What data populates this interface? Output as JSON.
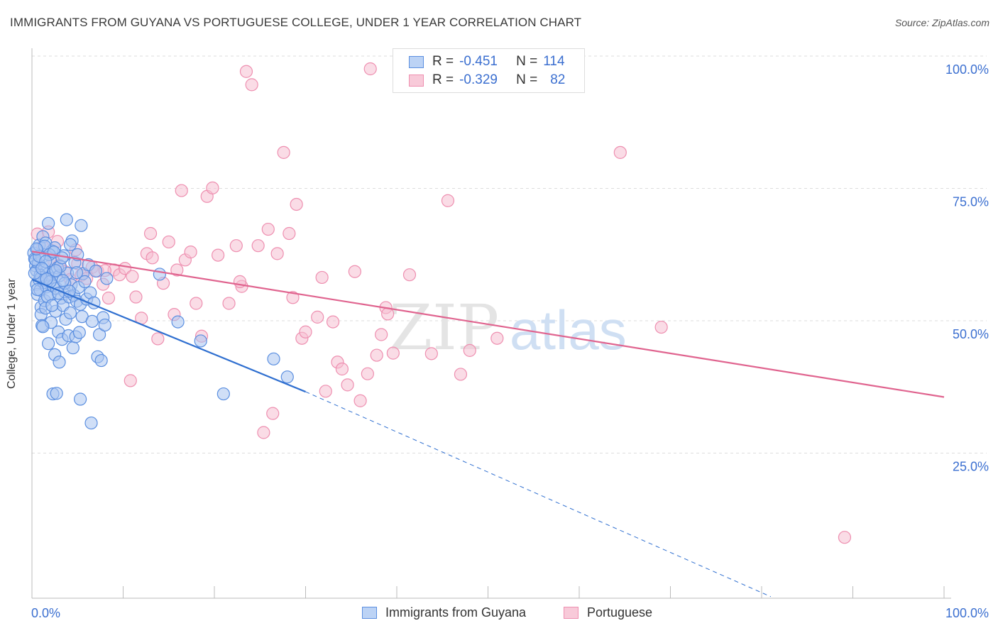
{
  "header": {
    "title": "IMMIGRANTS FROM GUYANA VS PORTUGUESE COLLEGE, UNDER 1 YEAR CORRELATION CHART",
    "source": "Source: ZipAtlas.com"
  },
  "watermark": {
    "zip": "ZIP",
    "atlas": "atlas"
  },
  "legend": {
    "rows": [
      {
        "r_label": "R =",
        "r_value": "-0.451",
        "n_label": "N =",
        "n_value": "114",
        "color": "#5b8fe0"
      },
      {
        "r_label": "R =",
        "r_value": "-0.329",
        "n_label": "N =",
        "n_value": "82",
        "color": "#ee8fb0"
      }
    ]
  },
  "bottom_legend": [
    "Immigrants from Guyana",
    "Portuguese"
  ],
  "colors": {
    "blue_fill": "#a9c5f0",
    "blue_stroke": "#5b8fe0",
    "blue_line": "#2f6fd0",
    "pink_fill": "#f6bfd1",
    "pink_stroke": "#ee8fb0",
    "pink_line": "#e0648f",
    "axis_label": "#3b6fd0",
    "grid": "#dddddd"
  },
  "chart_data": {
    "type": "scatter",
    "title": "IMMIGRANTS FROM GUYANA VS PORTUGUESE COLLEGE, UNDER 1 YEAR CORRELATION CHART",
    "xlabel": "",
    "ylabel": "College, Under 1 year",
    "xlim": [
      0,
      100
    ],
    "ylim": [
      0,
      100
    ],
    "x_tick_labels": [
      "0.0%",
      "100.0%"
    ],
    "y_tick_labels": [
      "100.0%",
      "75.0%",
      "50.0%",
      "25.0%"
    ],
    "y_ticks": [
      100,
      75,
      50,
      25
    ],
    "grid": true,
    "legend_position": "top-center",
    "series": [
      {
        "name": "Immigrants from Guyana",
        "r": -0.451,
        "n": 114,
        "trend": {
          "x": [
            0,
            30
          ],
          "y": [
            60.2,
            39.0
          ]
        },
        "trend_extension": {
          "x": [
            30,
            81
          ],
          "y": [
            39.0,
            0.3
          ]
        },
        "points": [
          [
            0.2,
            65.2
          ],
          [
            0.3,
            64.1
          ],
          [
            0.4,
            62.8
          ],
          [
            0.5,
            61.9
          ],
          [
            0.5,
            59.3
          ],
          [
            0.6,
            57.4
          ],
          [
            0.6,
            65.8
          ],
          [
            0.7,
            63.2
          ],
          [
            0.8,
            66.7
          ],
          [
            0.8,
            60.1
          ],
          [
            0.9,
            58.2
          ],
          [
            1.0,
            55.0
          ],
          [
            1.0,
            53.6
          ],
          [
            1.1,
            51.5
          ],
          [
            1.1,
            64.4
          ],
          [
            1.2,
            68.3
          ],
          [
            1.3,
            62.0
          ],
          [
            1.3,
            59.6
          ],
          [
            1.4,
            56.2
          ],
          [
            1.5,
            54.8
          ],
          [
            1.5,
            67.1
          ],
          [
            1.6,
            58.8
          ],
          [
            1.7,
            61.2
          ],
          [
            1.8,
            70.8
          ],
          [
            1.8,
            48.1
          ],
          [
            1.9,
            60.5
          ],
          [
            2.0,
            57.3
          ],
          [
            2.0,
            63.8
          ],
          [
            2.1,
            52.1
          ],
          [
            2.2,
            65.6
          ],
          [
            2.3,
            59.0
          ],
          [
            2.4,
            61.6
          ],
          [
            2.5,
            46.0
          ],
          [
            2.5,
            66.2
          ],
          [
            2.6,
            54.2
          ],
          [
            2.7,
            58.5
          ],
          [
            2.8,
            62.4
          ],
          [
            2.9,
            50.3
          ],
          [
            3.0,
            44.6
          ],
          [
            3.0,
            60.9
          ],
          [
            3.2,
            56.7
          ],
          [
            3.3,
            48.9
          ],
          [
            3.4,
            55.3
          ],
          [
            3.5,
            64.7
          ],
          [
            3.6,
            57.9
          ],
          [
            3.7,
            52.7
          ],
          [
            3.8,
            71.5
          ],
          [
            3.9,
            61.4
          ],
          [
            4.0,
            49.6
          ],
          [
            4.1,
            56.9
          ],
          [
            4.2,
            53.9
          ],
          [
            4.3,
            59.2
          ],
          [
            4.4,
            67.5
          ],
          [
            4.5,
            47.3
          ],
          [
            4.6,
            57.2
          ],
          [
            4.7,
            63.4
          ],
          [
            4.8,
            49.4
          ],
          [
            4.9,
            56.1
          ],
          [
            5.0,
            64.9
          ],
          [
            5.1,
            58.7
          ],
          [
            5.2,
            50.2
          ],
          [
            5.3,
            55.5
          ],
          [
            5.4,
            70.4
          ],
          [
            5.5,
            53.2
          ],
          [
            5.6,
            61.3
          ],
          [
            5.8,
            59.8
          ],
          [
            6.0,
            56.5
          ],
          [
            6.2,
            63.0
          ],
          [
            6.4,
            57.7
          ],
          [
            6.6,
            52.3
          ],
          [
            6.8,
            55.8
          ],
          [
            7.0,
            61.8
          ],
          [
            7.2,
            45.6
          ],
          [
            7.4,
            49.8
          ],
          [
            7.6,
            44.9
          ],
          [
            7.8,
            53.0
          ],
          [
            8.0,
            51.6
          ],
          [
            8.2,
            60.4
          ],
          [
            1.2,
            51.3
          ],
          [
            2.3,
            38.6
          ],
          [
            2.7,
            38.7
          ],
          [
            5.3,
            37.6
          ],
          [
            6.5,
            33.1
          ],
          [
            14.0,
            61.2
          ],
          [
            16.0,
            52.2
          ],
          [
            18.5,
            48.6
          ],
          [
            21.0,
            38.6
          ],
          [
            26.5,
            45.2
          ],
          [
            28.0,
            41.8
          ],
          [
            0.4,
            63.9
          ],
          [
            0.9,
            61.0
          ],
          [
            1.4,
            66.5
          ],
          [
            1.9,
            64.9
          ],
          [
            2.4,
            65.4
          ],
          [
            3.1,
            62.7
          ],
          [
            3.6,
            59.5
          ],
          [
            4.2,
            66.8
          ],
          [
            4.9,
            61.5
          ],
          [
            0.6,
            58.3
          ],
          [
            1.0,
            60.6
          ],
          [
            1.7,
            57.0
          ],
          [
            2.2,
            55.3
          ],
          [
            2.9,
            57.6
          ],
          [
            3.4,
            60.0
          ],
          [
            0.3,
            61.4
          ],
          [
            0.8,
            64.6
          ],
          [
            1.5,
            63.6
          ],
          [
            2.0,
            59.8
          ],
          [
            2.6,
            61.9
          ],
          [
            3.3,
            64.3
          ],
          [
            4.1,
            58.0
          ],
          [
            0.5,
            66.0
          ],
          [
            1.1,
            62.3
          ],
          [
            1.6,
            60.3
          ]
        ]
      },
      {
        "name": "Portuguese",
        "r": -0.329,
        "n": 82,
        "trend": {
          "x": [
            0,
            100
          ],
          "y": [
            65.5,
            38.0
          ]
        },
        "points": [
          [
            0.6,
            68.8
          ],
          [
            1.2,
            66.4
          ],
          [
            1.8,
            69.2
          ],
          [
            2.4,
            63.7
          ],
          [
            3.0,
            62.9
          ],
          [
            3.6,
            61.7
          ],
          [
            4.2,
            60.2
          ],
          [
            4.8,
            65.8
          ],
          [
            5.4,
            61.0
          ],
          [
            6.0,
            60.4
          ],
          [
            6.6,
            62.5
          ],
          [
            7.2,
            61.8
          ],
          [
            7.8,
            59.3
          ],
          [
            8.4,
            56.7
          ],
          [
            9.0,
            62.0
          ],
          [
            9.6,
            61.1
          ],
          [
            10.2,
            62.3
          ],
          [
            10.8,
            41.1
          ],
          [
            11.4,
            56.9
          ],
          [
            12.0,
            52.9
          ],
          [
            12.6,
            65.1
          ],
          [
            13.2,
            64.3
          ],
          [
            13.8,
            49.0
          ],
          [
            14.4,
            59.5
          ],
          [
            15.0,
            67.3
          ],
          [
            15.6,
            53.6
          ],
          [
            16.4,
            77.0
          ],
          [
            16.8,
            63.9
          ],
          [
            17.4,
            65.4
          ],
          [
            18.0,
            55.7
          ],
          [
            18.6,
            49.5
          ],
          [
            19.2,
            75.9
          ],
          [
            19.8,
            77.5
          ],
          [
            20.4,
            64.8
          ],
          [
            21.6,
            55.7
          ],
          [
            22.4,
            66.6
          ],
          [
            23.0,
            58.9
          ],
          [
            23.5,
            99.5
          ],
          [
            24.1,
            97.0
          ],
          [
            24.8,
            66.6
          ],
          [
            25.4,
            31.3
          ],
          [
            25.9,
            69.7
          ],
          [
            26.4,
            34.9
          ],
          [
            26.9,
            65.1
          ],
          [
            27.6,
            84.2
          ],
          [
            28.2,
            68.9
          ],
          [
            29.0,
            74.4
          ],
          [
            28.6,
            56.8
          ],
          [
            29.6,
            49.1
          ],
          [
            30.0,
            50.3
          ],
          [
            31.3,
            53.1
          ],
          [
            31.8,
            60.6
          ],
          [
            32.2,
            39.1
          ],
          [
            33.0,
            52.2
          ],
          [
            33.5,
            44.6
          ],
          [
            34.0,
            43.3
          ],
          [
            34.6,
            40.3
          ],
          [
            35.4,
            61.7
          ],
          [
            36.0,
            37.3
          ],
          [
            36.8,
            42.4
          ],
          [
            37.8,
            45.9
          ],
          [
            38.3,
            49.8
          ],
          [
            38.8,
            54.9
          ],
          [
            39.0,
            53.7
          ],
          [
            39.6,
            46.3
          ],
          [
            37.1,
            100.0
          ],
          [
            41.4,
            61.1
          ],
          [
            43.8,
            46.2
          ],
          [
            45.6,
            75.1
          ],
          [
            47.0,
            42.3
          ],
          [
            48.0,
            46.8
          ],
          [
            51.0,
            49.1
          ],
          [
            64.5,
            84.2
          ],
          [
            69.0,
            51.2
          ],
          [
            89.1,
            11.5
          ],
          [
            13.0,
            68.9
          ],
          [
            8.0,
            61.9
          ],
          [
            5.0,
            63.2
          ],
          [
            2.8,
            67.4
          ],
          [
            11.0,
            60.8
          ],
          [
            15.9,
            62.0
          ],
          [
            22.8,
            59.8
          ]
        ]
      }
    ]
  }
}
